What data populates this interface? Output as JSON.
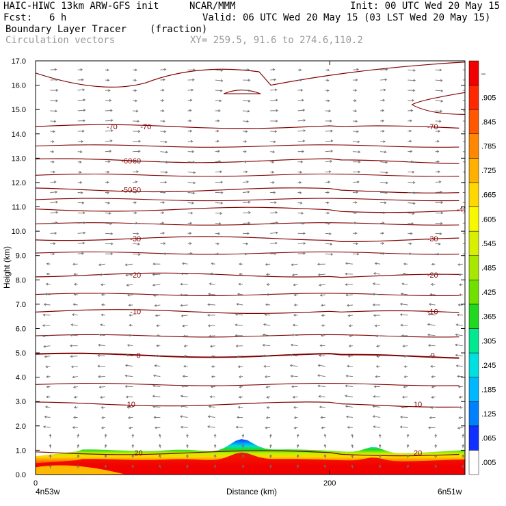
{
  "header": {
    "model": "HAIC-HIWC 13km ARW-GFS init",
    "org": "NCAR/MMM",
    "init": "Init: 00 UTC Wed 20 May 15",
    "fcst_label": "Fcst:",
    "fcst_value": "6 h",
    "valid": "Valid: 06 UTC Wed 20 May 15 (03 LST Wed 20 May 15)",
    "field": "Boundary Layer Tracer",
    "field_units": "(fraction)",
    "vectors": "Circulation vectors",
    "xy": "XY= 259.5, 91.6 to 274.6,110.2"
  },
  "chart_data": {
    "type": "heatmap",
    "title": "Boundary Layer Tracer (fraction)",
    "xlabel": "Distance (km)",
    "ylabel": "Height (km)",
    "xlim": [
      0,
      292
    ],
    "ylim": [
      0,
      17
    ],
    "x_ticks": [
      0,
      200
    ],
    "y_ticks": [
      "0.0",
      "1.0",
      "2.0",
      "3.0",
      "4.0",
      "5.0",
      "6.0",
      "7.0",
      "8.0",
      "9.0",
      "10.0",
      "11.0",
      "12.0",
      "13.0",
      "14.0",
      "15.0",
      "16.0",
      "17.0"
    ],
    "x_end_labels": {
      "left": "4n53w",
      "right": "6n51w"
    },
    "colorbar": {
      "labels": [
        ".005",
        ".065",
        ".125",
        ".185",
        ".245",
        ".305",
        ".365",
        ".425",
        ".485",
        ".545",
        ".605",
        ".665",
        ".725",
        ".785",
        ".845",
        ".905",
        "–"
      ],
      "colors": [
        "#ffffff",
        "#1030ff",
        "#0080ff",
        "#00b8ff",
        "#00e0e0",
        "#00e890",
        "#20d820",
        "#70e000",
        "#a8e800",
        "#d8f000",
        "#f8f800",
        "#ffd800",
        "#ffb000",
        "#ff8800",
        "#ff5800",
        "#ff2800",
        "#f00000"
      ]
    },
    "temperature_contours": [
      {
        "label": "-70",
        "z": 14.3
      },
      {
        "label": "-60",
        "z": 12.9
      },
      {
        "label": "-50",
        "z": 11.7
      },
      {
        "label": "-40",
        "z": 10.9
      },
      {
        "label": "-30",
        "z": 9.7
      },
      {
        "label": "-20",
        "z": 8.2
      },
      {
        "label": "-10",
        "z": 6.7
      },
      {
        "label": "0",
        "z": 4.9
      },
      {
        "label": "10",
        "z": 2.9
      },
      {
        "label": "20",
        "z": 0.9
      }
    ],
    "tropopause_contour_z": 16.5,
    "tracer_top_km": 1.6,
    "grid": false
  }
}
